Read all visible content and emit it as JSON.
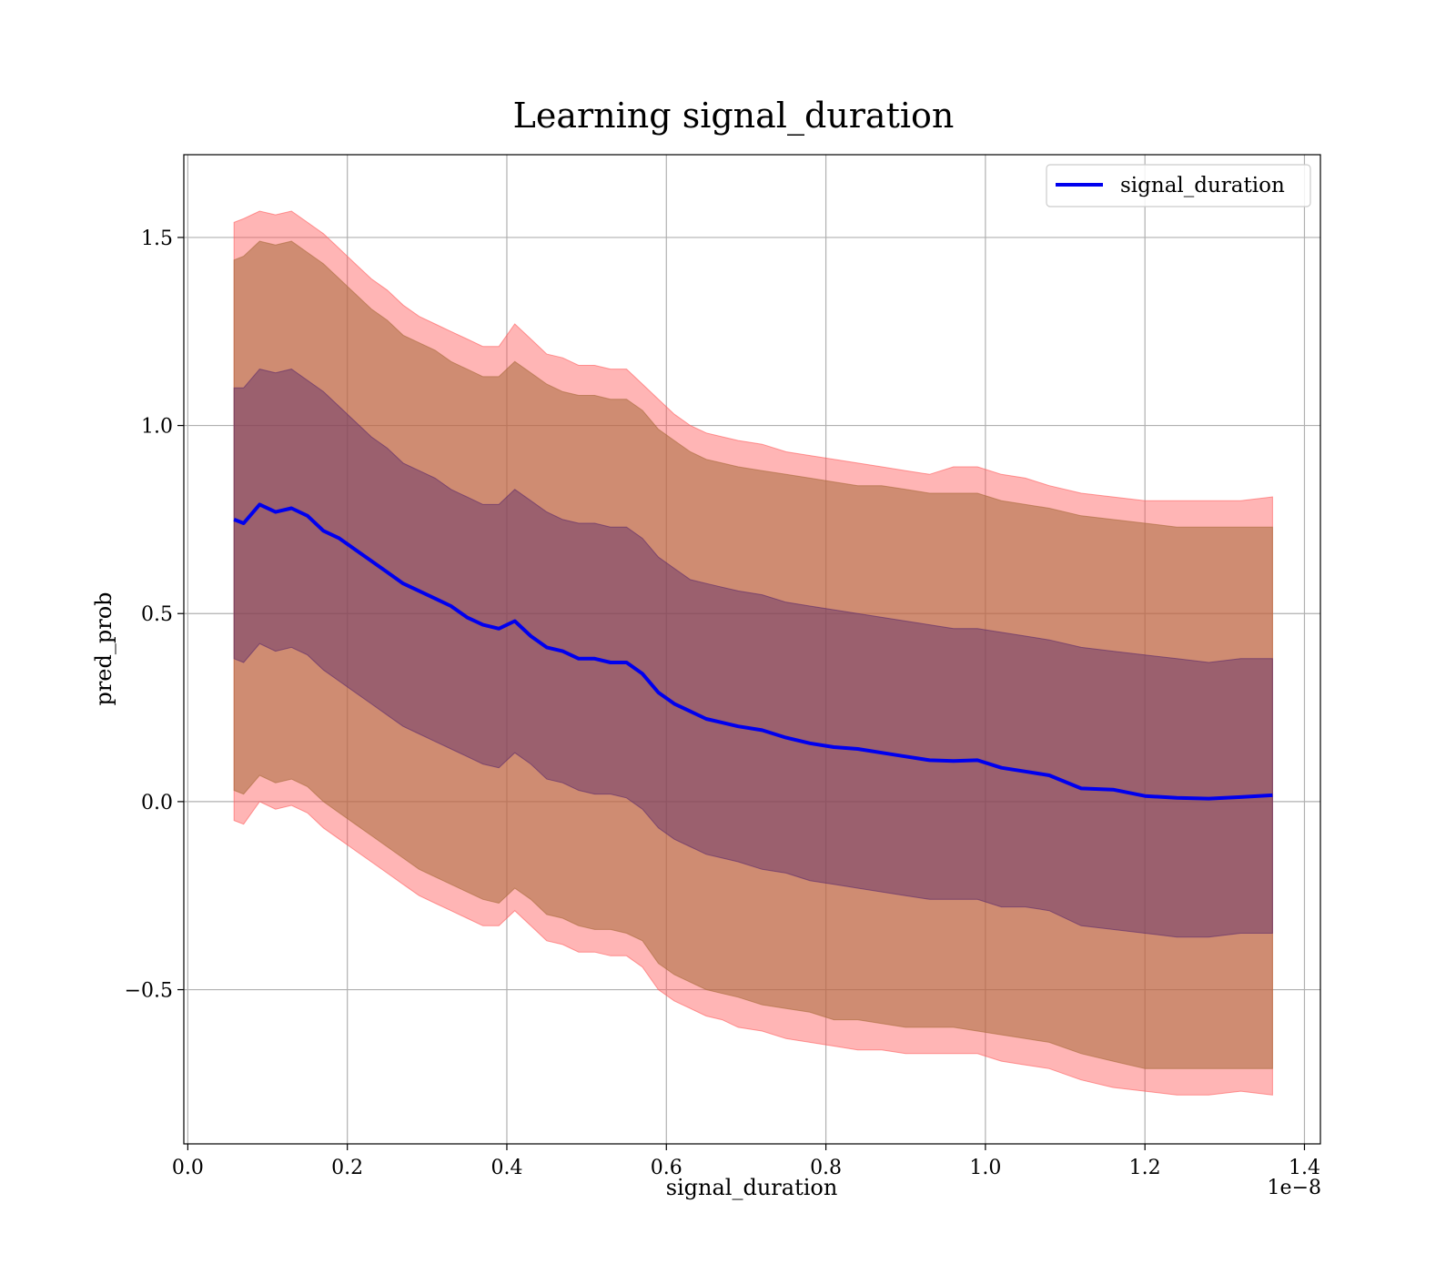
{
  "chart_data": {
    "type": "line",
    "title": "Learning signal_duration",
    "xlabel": "signal_duration",
    "ylabel": "pred_prob",
    "x_offset_label": "1e−8",
    "xlim": [
      -0.005,
      1.42
    ],
    "ylim": [
      -0.91,
      1.72
    ],
    "x_ticks": [
      0.0,
      0.2,
      0.4,
      0.6,
      0.8,
      1.0,
      1.2,
      1.4
    ],
    "x_tick_labels": [
      "0.0",
      "0.2",
      "0.4",
      "0.6",
      "0.8",
      "1.0",
      "1.2",
      "1.4"
    ],
    "y_ticks": [
      -0.5,
      0.0,
      0.5,
      1.0,
      1.5
    ],
    "y_tick_labels": [
      "−0.5",
      "0.0",
      "0.5",
      "1.0",
      "1.5"
    ],
    "grid": true,
    "legend_position": "top-right",
    "x": [
      0.058,
      0.07,
      0.09,
      0.11,
      0.13,
      0.15,
      0.17,
      0.19,
      0.21,
      0.23,
      0.25,
      0.27,
      0.29,
      0.31,
      0.33,
      0.35,
      0.37,
      0.39,
      0.41,
      0.43,
      0.45,
      0.47,
      0.49,
      0.51,
      0.53,
      0.55,
      0.57,
      0.59,
      0.61,
      0.63,
      0.65,
      0.67,
      0.69,
      0.72,
      0.75,
      0.78,
      0.81,
      0.84,
      0.87,
      0.9,
      0.93,
      0.96,
      0.99,
      1.02,
      1.05,
      1.08,
      1.12,
      1.16,
      1.2,
      1.24,
      1.28,
      1.32,
      1.36
    ],
    "series": [
      {
        "name": "signal_duration",
        "color": "#0000ee",
        "values": [
          0.75,
          0.74,
          0.79,
          0.77,
          0.78,
          0.76,
          0.72,
          0.7,
          0.67,
          0.64,
          0.61,
          0.58,
          0.56,
          0.54,
          0.52,
          0.49,
          0.47,
          0.46,
          0.48,
          0.44,
          0.41,
          0.4,
          0.38,
          0.38,
          0.37,
          0.37,
          0.34,
          0.29,
          0.26,
          0.24,
          0.22,
          0.21,
          0.2,
          0.19,
          0.17,
          0.155,
          0.145,
          0.14,
          0.13,
          0.12,
          0.11,
          0.108,
          0.11,
          0.09,
          0.08,
          0.07,
          0.035,
          0.032,
          0.015,
          0.01,
          0.008,
          0.012,
          0.017
        ]
      }
    ],
    "bands": [
      {
        "color": "#ff5a5a",
        "opacity": 0.45,
        "upper": [
          1.54,
          1.55,
          1.57,
          1.56,
          1.57,
          1.54,
          1.51,
          1.47,
          1.43,
          1.39,
          1.36,
          1.32,
          1.29,
          1.27,
          1.25,
          1.23,
          1.21,
          1.21,
          1.27,
          1.23,
          1.19,
          1.18,
          1.16,
          1.16,
          1.15,
          1.15,
          1.11,
          1.07,
          1.03,
          1.0,
          0.98,
          0.97,
          0.96,
          0.95,
          0.93,
          0.92,
          0.91,
          0.9,
          0.89,
          0.88,
          0.87,
          0.89,
          0.89,
          0.87,
          0.86,
          0.84,
          0.82,
          0.81,
          0.8,
          0.8,
          0.8,
          0.8,
          0.81
        ],
        "lower": [
          -0.05,
          -0.06,
          0.0,
          -0.02,
          -0.01,
          -0.03,
          -0.07,
          -0.1,
          -0.13,
          -0.16,
          -0.19,
          -0.22,
          -0.25,
          -0.27,
          -0.29,
          -0.31,
          -0.33,
          -0.33,
          -0.29,
          -0.33,
          -0.37,
          -0.38,
          -0.4,
          -0.4,
          -0.41,
          -0.41,
          -0.44,
          -0.5,
          -0.53,
          -0.55,
          -0.57,
          -0.58,
          -0.6,
          -0.61,
          -0.63,
          -0.64,
          -0.65,
          -0.66,
          -0.66,
          -0.67,
          -0.67,
          -0.67,
          -0.67,
          -0.69,
          -0.7,
          -0.71,
          -0.74,
          -0.76,
          -0.77,
          -0.78,
          -0.78,
          -0.77,
          -0.78
        ]
      },
      {
        "color": "#a86a3a",
        "opacity": 0.55,
        "upper": [
          1.44,
          1.45,
          1.49,
          1.48,
          1.49,
          1.46,
          1.43,
          1.39,
          1.35,
          1.31,
          1.28,
          1.24,
          1.22,
          1.2,
          1.17,
          1.15,
          1.13,
          1.13,
          1.17,
          1.14,
          1.11,
          1.09,
          1.08,
          1.08,
          1.07,
          1.07,
          1.04,
          0.99,
          0.96,
          0.93,
          0.91,
          0.9,
          0.89,
          0.88,
          0.87,
          0.86,
          0.85,
          0.84,
          0.84,
          0.83,
          0.82,
          0.82,
          0.82,
          0.8,
          0.79,
          0.78,
          0.76,
          0.75,
          0.74,
          0.73,
          0.73,
          0.73,
          0.73
        ],
        "lower": [
          0.03,
          0.02,
          0.07,
          0.05,
          0.06,
          0.04,
          0.0,
          -0.03,
          -0.06,
          -0.09,
          -0.12,
          -0.15,
          -0.18,
          -0.2,
          -0.22,
          -0.24,
          -0.26,
          -0.27,
          -0.23,
          -0.26,
          -0.3,
          -0.31,
          -0.33,
          -0.34,
          -0.34,
          -0.35,
          -0.37,
          -0.43,
          -0.46,
          -0.48,
          -0.5,
          -0.51,
          -0.52,
          -0.54,
          -0.55,
          -0.56,
          -0.58,
          -0.58,
          -0.59,
          -0.6,
          -0.6,
          -0.6,
          -0.61,
          -0.62,
          -0.63,
          -0.64,
          -0.67,
          -0.69,
          -0.71,
          -0.71,
          -0.71,
          -0.71,
          -0.71
        ]
      },
      {
        "color": "#5c2a6a",
        "opacity": 0.45,
        "upper": [
          1.1,
          1.1,
          1.15,
          1.14,
          1.15,
          1.12,
          1.09,
          1.05,
          1.01,
          0.97,
          0.94,
          0.9,
          0.88,
          0.86,
          0.83,
          0.81,
          0.79,
          0.79,
          0.83,
          0.8,
          0.77,
          0.75,
          0.74,
          0.74,
          0.73,
          0.73,
          0.7,
          0.65,
          0.62,
          0.59,
          0.58,
          0.57,
          0.56,
          0.55,
          0.53,
          0.52,
          0.51,
          0.5,
          0.49,
          0.48,
          0.47,
          0.46,
          0.46,
          0.45,
          0.44,
          0.43,
          0.41,
          0.4,
          0.39,
          0.38,
          0.37,
          0.38,
          0.38
        ],
        "lower": [
          0.38,
          0.37,
          0.42,
          0.4,
          0.41,
          0.39,
          0.35,
          0.32,
          0.29,
          0.26,
          0.23,
          0.2,
          0.18,
          0.16,
          0.14,
          0.12,
          0.1,
          0.09,
          0.13,
          0.1,
          0.06,
          0.05,
          0.03,
          0.02,
          0.02,
          0.01,
          -0.02,
          -0.07,
          -0.1,
          -0.12,
          -0.14,
          -0.15,
          -0.16,
          -0.18,
          -0.19,
          -0.21,
          -0.22,
          -0.23,
          -0.24,
          -0.25,
          -0.26,
          -0.26,
          -0.26,
          -0.28,
          -0.28,
          -0.29,
          -0.33,
          -0.34,
          -0.35,
          -0.36,
          -0.36,
          -0.35,
          -0.35
        ]
      }
    ]
  }
}
